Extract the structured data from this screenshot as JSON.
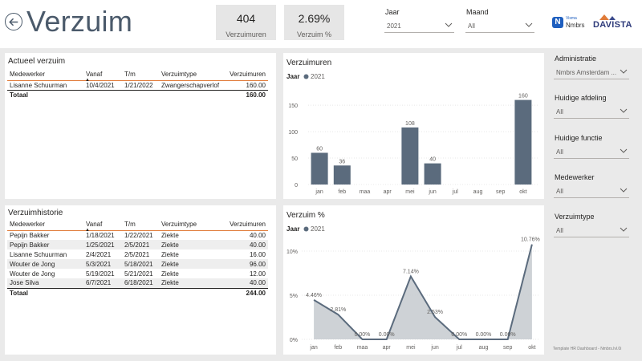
{
  "header": {
    "title": "Verzuim",
    "kpis": [
      {
        "value": "404",
        "label": "Verzuimuren"
      },
      {
        "value": "2.69%",
        "label": "Verzuim %"
      }
    ],
    "slicers": {
      "jaar": {
        "label": "Jaar",
        "value": "2021"
      },
      "maand": {
        "label": "Maand",
        "value": "All"
      }
    },
    "logos": {
      "visma_line1": "Visma",
      "visma_line2": "Nmbrs",
      "davista": "DAVISTA",
      "visma_n": "N"
    }
  },
  "actueel": {
    "title": "Actueel verzuim",
    "columns": [
      "Medewerker",
      "Vanaf",
      "T/m",
      "Verzuimtype",
      "Verzuimuren"
    ],
    "rows": [
      [
        "Lisanne Schuurman",
        "10/4/2021",
        "1/21/2022",
        "Zwangerschapverlof",
        "160.00"
      ]
    ],
    "total_label": "Totaal",
    "total_value": "160.00"
  },
  "historie": {
    "title": "Verzuimhistorie",
    "columns": [
      "Medewerker",
      "Vanaf",
      "T/m",
      "Verzuimtype",
      "Verzuimuren"
    ],
    "rows": [
      [
        "Pepijn Bakker",
        "1/18/2021",
        "1/22/2021",
        "Ziekte",
        "40.00"
      ],
      [
        "Pepijn Bakker",
        "1/25/2021",
        "2/5/2021",
        "Ziekte",
        "40.00"
      ],
      [
        "Lisanne Schuurman",
        "2/4/2021",
        "2/5/2021",
        "Ziekte",
        "16.00"
      ],
      [
        "Wouter de Jong",
        "5/3/2021",
        "5/18/2021",
        "Ziekte",
        "96.00"
      ],
      [
        "Wouter de Jong",
        "5/19/2021",
        "5/21/2021",
        "Ziekte",
        "12.00"
      ],
      [
        "Jose Silva",
        "6/7/2021",
        "6/18/2021",
        "Ziekte",
        "40.00"
      ]
    ],
    "total_label": "Totaal",
    "total_value": "244.00"
  },
  "sidebar": {
    "filters": [
      {
        "label": "Administratie",
        "value": "Nmbrs Amsterdam ..."
      },
      {
        "label": "Huidige afdeling",
        "value": "All"
      },
      {
        "label": "Huidige functie",
        "value": "All"
      },
      {
        "label": "Medewerker",
        "value": "All"
      },
      {
        "label": "Verzuimtype",
        "value": "All"
      }
    ],
    "footnote": "Template HR Dashboard - Nmbrs.lvl.0i"
  },
  "colors": {
    "series": "#5b6b7d",
    "area": "#5b6b7d",
    "accent": "#e07b39",
    "title": "#4b5a6b"
  },
  "chart_data": [
    {
      "type": "bar",
      "title": "Verzuimuren",
      "legend_title": "Jaar",
      "categories": [
        "jan",
        "feb",
        "maa",
        "apr",
        "mei",
        "jun",
        "jul",
        "aug",
        "sep",
        "okt"
      ],
      "series": [
        {
          "name": "2021",
          "values": [
            60,
            36,
            null,
            null,
            108,
            40,
            null,
            null,
            null,
            160
          ]
        }
      ],
      "data_labels": [
        "60",
        "36",
        "",
        "",
        "108",
        "40",
        "",
        "",
        "",
        "160"
      ],
      "y_ticks": [
        "0",
        "50",
        "100",
        "150"
      ],
      "ylim": [
        0,
        170
      ],
      "legend_position": "top-left"
    },
    {
      "type": "area",
      "title": "Verzuim %",
      "legend_title": "Jaar",
      "categories": [
        "jan",
        "feb",
        "maa",
        "apr",
        "mei",
        "jun",
        "jul",
        "aug",
        "sep",
        "okt"
      ],
      "series": [
        {
          "name": "2021",
          "values": [
            4.46,
            2.81,
            0.0,
            0.0,
            7.14,
            2.53,
            0.0,
            0.0,
            0.0,
            10.76
          ]
        }
      ],
      "data_labels": [
        "4.46%",
        "2.81%",
        "0.00%",
        "0.00%",
        "7.14%",
        "2.53%",
        "0.00%",
        "0.00%",
        "0.00%",
        "10.76%"
      ],
      "y_ticks": [
        "0%",
        "5%",
        "10%"
      ],
      "ylim": [
        0,
        11
      ],
      "legend_position": "top-left"
    }
  ]
}
